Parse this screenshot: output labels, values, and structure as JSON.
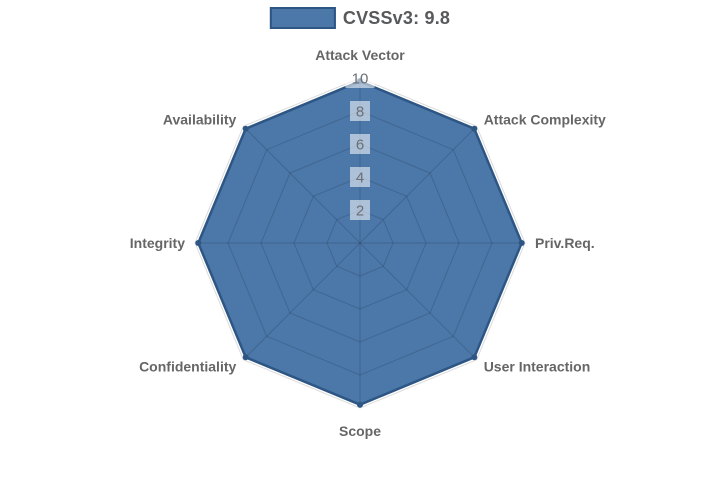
{
  "page": {
    "background": "#ffffff"
  },
  "legend": {
    "label": "CVSSv3: 9.8",
    "swatch_fill": "#4b77a9",
    "swatch_border": "#2d5684"
  },
  "chart_data": {
    "type": "radar",
    "title": "CVSSv3: 9.8",
    "categories": [
      "Attack Vector",
      "Attack Complexity",
      "Priv.Req.",
      "User Interaction",
      "Scope",
      "Confidentiality",
      "Integrity",
      "Availability"
    ],
    "series": [
      {
        "name": "CVSSv3: 9.8",
        "values": [
          9.8,
          9.8,
          9.8,
          9.8,
          9.8,
          9.8,
          9.8,
          9.8
        ]
      }
    ],
    "rmin": 0,
    "rmax": 10,
    "ticks": [
      2,
      4,
      6,
      8,
      10
    ],
    "grid": true,
    "grid_shape": "polygon",
    "legend_position": "top",
    "colors": {
      "fill": "#4b77a9",
      "fill_opacity": "1",
      "stroke": "#2d5684",
      "grid_line": "rgba(0,0,0,0.14)",
      "tick_text": "#6b6f76",
      "tick_backdrop": "rgba(255,255,255,0.55)",
      "label_text": "#666666"
    }
  }
}
